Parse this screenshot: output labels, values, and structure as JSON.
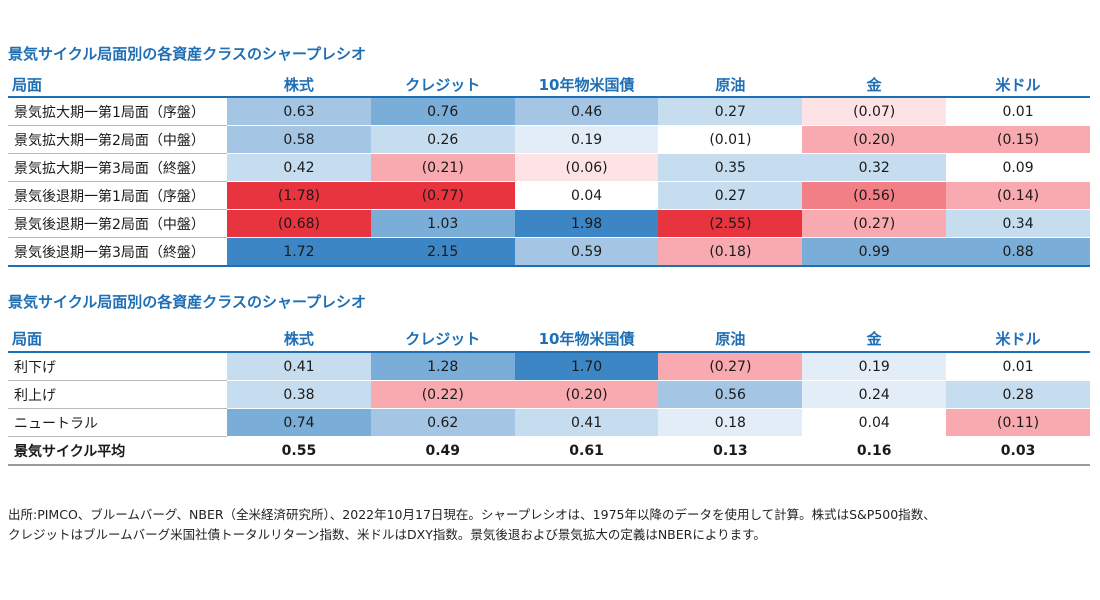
{
  "chart_data": [
    {
      "type": "table",
      "title": "景気サイクル局面別の各資産クラスのシャープレシオ",
      "columns": [
        "局面",
        "株式",
        "クレジット",
        "10年物米国債",
        "原油",
        "金",
        "米ドル"
      ],
      "rows": [
        {
          "label": "景気拡大期一第1局面（序盤）",
          "values": [
            0.63,
            0.76,
            0.46,
            0.27,
            -0.07,
            0.01
          ],
          "display": [
            "0.63",
            "0.76",
            "0.46",
            "0.27",
            "(0.07)",
            "0.01"
          ]
        },
        {
          "label": "景気拡大期一第2局面（中盤）",
          "values": [
            0.58,
            0.26,
            0.19,
            -0.01,
            -0.2,
            -0.15
          ],
          "display": [
            "0.58",
            "0.26",
            "0.19",
            "(0.01)",
            "(0.20)",
            "(0.15)"
          ]
        },
        {
          "label": "景気拡大期一第3局面（終盤）",
          "values": [
            0.42,
            -0.21,
            -0.06,
            0.35,
            0.32,
            0.09
          ],
          "display": [
            "0.42",
            "(0.21)",
            "(0.06)",
            "0.35",
            "0.32",
            "0.09"
          ]
        },
        {
          "label": "景気後退期一第1局面（序盤）",
          "values": [
            -1.78,
            -0.77,
            0.04,
            0.27,
            -0.56,
            -0.14
          ],
          "display": [
            "(1.78)",
            "(0.77)",
            "0.04",
            "0.27",
            "(0.56)",
            "(0.14)"
          ]
        },
        {
          "label": "景気後退期一第2局面（中盤）",
          "values": [
            -0.68,
            1.03,
            1.98,
            -2.55,
            -0.27,
            0.34
          ],
          "display": [
            "(0.68)",
            "1.03",
            "1.98",
            "(2.55)",
            "(0.27)",
            "0.34"
          ]
        },
        {
          "label": "景気後退期一第3局面（終盤）",
          "values": [
            1.72,
            2.15,
            0.59,
            -0.18,
            0.99,
            0.88
          ],
          "display": [
            "1.72",
            "2.15",
            "0.59",
            "(0.18)",
            "0.99",
            "0.88"
          ]
        }
      ]
    },
    {
      "type": "table",
      "title": "景気サイクル局面別の各資産クラスのシャープレシオ",
      "columns": [
        "局面",
        "株式",
        "クレジット",
        "10年物米国債",
        "原油",
        "金",
        "米ドル"
      ],
      "rows": [
        {
          "label": "利下げ",
          "values": [
            0.41,
            1.28,
            1.7,
            -0.27,
            0.19,
            0.01
          ],
          "display": [
            "0.41",
            "1.28",
            "1.70",
            "(0.27)",
            "0.19",
            "0.01"
          ]
        },
        {
          "label": "利上げ",
          "values": [
            0.38,
            -0.22,
            -0.2,
            0.56,
            0.24,
            0.28
          ],
          "display": [
            "0.38",
            "(0.22)",
            "(0.20)",
            "0.56",
            "0.24",
            "0.28"
          ]
        },
        {
          "label": "ニュートラル",
          "values": [
            0.74,
            0.62,
            0.41,
            0.18,
            0.04,
            -0.11
          ],
          "display": [
            "0.74",
            "0.62",
            "0.41",
            "0.18",
            "0.04",
            "(0.11)"
          ]
        }
      ],
      "summary_row": {
        "label": "景気サイクル平均",
        "values": [
          0.55,
          0.49,
          0.61,
          0.13,
          0.16,
          0.03
        ],
        "display": [
          "0.55",
          "0.49",
          "0.61",
          "0.13",
          "0.16",
          "0.03"
        ]
      }
    }
  ],
  "colors": {
    "title": "#1f6fb5",
    "blue_scale": [
      "#ffffff",
      "#e3edf7",
      "#c6dcef",
      "#a4c6e4",
      "#7aaed8",
      "#3d86c6"
    ],
    "red_scale": [
      "#ffffff",
      "#fde3e5",
      "#f9aab0",
      "#f37f86",
      "#e8343e"
    ]
  },
  "note": {
    "line1": "出所:PIMCO、ブルームバーグ、NBER（全米経済研究所）、2022年10月17日現在。シャープレシオは、1975年以降のデータを使用して計算。株式はS&P500指数、",
    "line2": "クレジットはブルームバーグ米国社債トータルリターン指数、米ドルはDXY指数。景気後退および景気拡大の定義はNBERによります。"
  }
}
